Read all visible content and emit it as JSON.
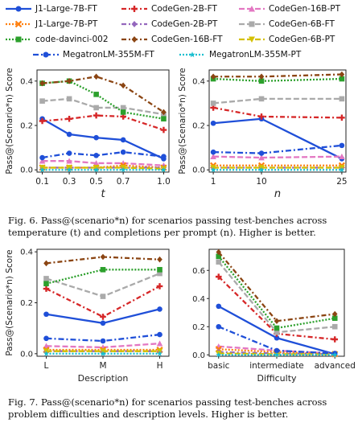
{
  "legend": [
    {
      "label": "J1-Large-7B-FT",
      "color": "#1f4fd8",
      "dash": "",
      "marker": "circle"
    },
    {
      "label": "CodeGen-2B-FT",
      "color": "#d62728",
      "dash": "6,3,2,3",
      "marker": "plus"
    },
    {
      "label": "CodeGen-16B-PT",
      "color": "#e377c2",
      "dash": "7,3",
      "marker": "triangle"
    },
    {
      "label": "J1-Large-7B-PT",
      "color": "#ff7f0e",
      "dash": "2,2",
      "marker": "x"
    },
    {
      "label": "CodeGen-2B-PT",
      "color": "#9467bd",
      "dash": "6,3,2,3",
      "marker": "diamond"
    },
    {
      "label": "CodeGen-6B-FT",
      "color": "#aaaaaa",
      "dash": "7,3",
      "marker": "square"
    },
    {
      "label": "code-davinci-002",
      "color": "#2ca02c",
      "dash": "2,2",
      "marker": "square"
    },
    {
      "label": "CodeGen-16B-FT",
      "color": "#8b4513",
      "dash": "6,3,2,3",
      "marker": "diamond"
    },
    {
      "label": "CodeGen-6B-PT",
      "color": "#d4c000",
      "dash": "7,3",
      "marker": "tridown"
    },
    {
      "label": "MegatronLM-355M-FT",
      "color": "#1f4fd8",
      "dash": "7,3,2,3",
      "marker": "circle"
    },
    {
      "label": "MegatronLM-355M-PT",
      "color": "#17becf",
      "dash": "2,2",
      "marker": "star"
    }
  ],
  "captions": {
    "fig6": "Fig. 6.  Pass@(scenario*n) for scenarios passing test-benches across temperature (t) and completions per prompt (n). Higher is better.",
    "fig7": "Fig. 7.  Pass@(scenario*n) for scenarios passing test-benches across problem difficulties and description levels. Higher is better."
  },
  "chart_data": [
    {
      "type": "line",
      "ylabel": "Pass@(Scenario*n) Score",
      "xlabel": "t",
      "categories": [
        "0.1",
        "0.3",
        "0.5",
        "0.7",
        "1.0"
      ],
      "ylim": [
        -0.01,
        0.45
      ],
      "yticks": [
        "0.0",
        "0.2",
        "0.4"
      ],
      "yticks_num": [
        0,
        0.2,
        0.4
      ],
      "series": [
        {
          "name": "J1-Large-7B-FT",
          "values": [
            0.23,
            0.16,
            0.145,
            0.135,
            0.05
          ]
        },
        {
          "name": "CodeGen-2B-FT",
          "values": [
            0.22,
            0.23,
            0.245,
            0.24,
            0.18
          ]
        },
        {
          "name": "CodeGen-16B-PT",
          "values": [
            0.04,
            0.04,
            0.03,
            0.03,
            0.02
          ]
        },
        {
          "name": "J1-Large-7B-PT",
          "values": [
            0.01,
            0.01,
            0.01,
            0.02,
            0.01
          ]
        },
        {
          "name": "CodeGen-2B-PT",
          "values": [
            0.01,
            0.01,
            0.01,
            0.01,
            0.01
          ]
        },
        {
          "name": "CodeGen-6B-FT",
          "values": [
            0.31,
            0.32,
            0.28,
            0.28,
            0.25
          ]
        },
        {
          "name": "code-davinci-002",
          "values": [
            0.39,
            0.4,
            0.34,
            0.26,
            0.23
          ]
        },
        {
          "name": "CodeGen-16B-FT",
          "values": [
            0.39,
            0.4,
            0.42,
            0.38,
            0.26
          ]
        },
        {
          "name": "CodeGen-6B-PT",
          "values": [
            0.01,
            0.01,
            0.01,
            0.01,
            0.005
          ]
        },
        {
          "name": "MegatronLM-355M-FT",
          "values": [
            0.055,
            0.075,
            0.065,
            0.08,
            0.06
          ]
        },
        {
          "name": "MegatronLM-355M-PT",
          "values": [
            0.0,
            0.0,
            0.0,
            0.0,
            0.0
          ]
        }
      ]
    },
    {
      "type": "line",
      "ylabel": "Pass@(Scenario*n) Score",
      "xlabel": "n",
      "categories": [
        "1",
        "10",
        "25"
      ],
      "ylim": [
        -0.01,
        0.45
      ],
      "yticks": [
        "0.0",
        "0.2",
        "0.4"
      ],
      "yticks_num": [
        0,
        0.2,
        0.4
      ],
      "series": [
        {
          "name": "J1-Large-7B-FT",
          "values": [
            0.21,
            0.23,
            0.05
          ]
        },
        {
          "name": "CodeGen-2B-FT",
          "values": [
            0.28,
            0.24,
            0.235
          ]
        },
        {
          "name": "CodeGen-16B-PT",
          "values": [
            0.06,
            0.055,
            0.06
          ]
        },
        {
          "name": "J1-Large-7B-PT",
          "values": [
            0.02,
            0.02,
            0.02
          ]
        },
        {
          "name": "CodeGen-2B-PT",
          "values": [
            0.01,
            0.01,
            0.01
          ]
        },
        {
          "name": "CodeGen-6B-FT",
          "values": [
            0.3,
            0.32,
            0.32
          ]
        },
        {
          "name": "code-davinci-002",
          "values": [
            0.41,
            0.4,
            0.41
          ]
        },
        {
          "name": "CodeGen-16B-FT",
          "values": [
            0.42,
            0.42,
            0.43
          ]
        },
        {
          "name": "CodeGen-6B-PT",
          "values": [
            0.01,
            0.01,
            0.01
          ]
        },
        {
          "name": "MegatronLM-355M-FT",
          "values": [
            0.08,
            0.075,
            0.11
          ]
        },
        {
          "name": "MegatronLM-355M-PT",
          "values": [
            0.0,
            0.0,
            0.0
          ]
        }
      ]
    },
    {
      "type": "line",
      "ylabel": "Pass@(Scenario*n) Score",
      "xlabel": "Description",
      "categories": [
        "L",
        "M",
        "H"
      ],
      "ylim": [
        -0.01,
        0.41
      ],
      "yticks": [
        "0.0",
        "0.2",
        "0.4"
      ],
      "yticks_num": [
        0,
        0.2,
        0.4
      ],
      "series": [
        {
          "name": "J1-Large-7B-FT",
          "values": [
            0.155,
            0.12,
            0.175
          ]
        },
        {
          "name": "CodeGen-2B-FT",
          "values": [
            0.255,
            0.145,
            0.265
          ]
        },
        {
          "name": "CodeGen-16B-PT",
          "values": [
            0.03,
            0.025,
            0.04
          ]
        },
        {
          "name": "J1-Large-7B-PT",
          "values": [
            0.015,
            0.015,
            0.015
          ]
        },
        {
          "name": "CodeGen-2B-PT",
          "values": [
            0.01,
            0.01,
            0.01
          ]
        },
        {
          "name": "CodeGen-6B-FT",
          "values": [
            0.295,
            0.225,
            0.315
          ]
        },
        {
          "name": "code-davinci-002",
          "values": [
            0.275,
            0.33,
            0.33
          ]
        },
        {
          "name": "CodeGen-16B-FT",
          "values": [
            0.355,
            0.38,
            0.37
          ]
        },
        {
          "name": "CodeGen-6B-PT",
          "values": [
            0.01,
            0.01,
            0.01
          ]
        },
        {
          "name": "MegatronLM-355M-FT",
          "values": [
            0.06,
            0.05,
            0.075
          ]
        },
        {
          "name": "MegatronLM-355M-PT",
          "values": [
            0.0,
            0.0,
            0.0
          ]
        }
      ]
    },
    {
      "type": "line",
      "ylabel": "",
      "xlabel": "Difficulty",
      "categories": [
        "basic",
        "intermediate",
        "advanced"
      ],
      "ylim": [
        -0.01,
        0.75
      ],
      "yticks": [
        "0.0",
        "0.2",
        "0.4",
        "0.6"
      ],
      "yticks_num": [
        0,
        0.2,
        0.4,
        0.6
      ],
      "series": [
        {
          "name": "J1-Large-7B-FT",
          "values": [
            0.345,
            0.12,
            0.005
          ]
        },
        {
          "name": "CodeGen-2B-FT",
          "values": [
            0.555,
            0.15,
            0.11
          ]
        },
        {
          "name": "CodeGen-16B-PT",
          "values": [
            0.06,
            0.03,
            0.01
          ]
        },
        {
          "name": "J1-Large-7B-PT",
          "values": [
            0.04,
            0.02,
            0.005
          ]
        },
        {
          "name": "CodeGen-2B-PT",
          "values": [
            0.02,
            0.01,
            0.005
          ]
        },
        {
          "name": "CodeGen-6B-FT",
          "values": [
            0.66,
            0.16,
            0.2
          ]
        },
        {
          "name": "code-davinci-002",
          "values": [
            0.7,
            0.19,
            0.26
          ]
        },
        {
          "name": "CodeGen-16B-FT",
          "values": [
            0.73,
            0.24,
            0.29
          ]
        },
        {
          "name": "CodeGen-6B-PT",
          "values": [
            0.01,
            0.005,
            0.005
          ]
        },
        {
          "name": "MegatronLM-355M-FT",
          "values": [
            0.2,
            0.03,
            0.01
          ]
        },
        {
          "name": "MegatronLM-355M-PT",
          "values": [
            0.0,
            0.0,
            0.0
          ]
        }
      ]
    }
  ]
}
